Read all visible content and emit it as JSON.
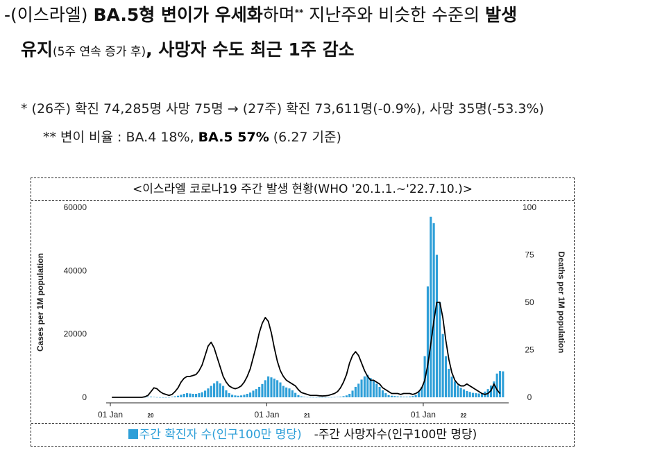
{
  "headline": {
    "dash": "-",
    "p1": "(이스라엘) ",
    "p2": "BA.5",
    "p3": "형 변이가 ",
    "p4": "우세화",
    "p5": "하며",
    "sup": "**",
    "p6": " 지난주와 비슷한 수준의 ",
    "p7": "발생",
    "line2_a": "유지",
    "line2_small": "(5주 연속 증가 후)",
    "line2_b": ", 사망자 수도 최근 1주 감소"
  },
  "note1": "* (26주) 확진 74,285명 사망 75명 → (27주) 확진 73,611명(-0.9%), 사망 35명(-53.3%)",
  "note2": {
    "prefix": "** 변이 비율 : BA.4 18%, ",
    "bold": "BA.5 57%",
    "suffix": " (6.27 기준)"
  },
  "chart_box": {
    "title": "<이스라엘 코로나19 주간 발생 현황(WHO '20.1.1.~'22.7.10.)>",
    "legend_cases": "주간 확진자 수(인구100만 명당)",
    "legend_deaths": "-주간 사망자수(인구100만 명당)"
  },
  "chart_data": {
    "type": "bar",
    "ylabel": "Cases per 1M population",
    "y2label": "Deaths per 1M population",
    "ylim": [
      0,
      60000
    ],
    "y2lim": [
      0,
      100
    ],
    "yticks": [
      0,
      20000,
      40000,
      60000
    ],
    "y2ticks": [
      0,
      25,
      50,
      75,
      100
    ],
    "xticks": [
      {
        "label": "01 Jan",
        "year": "20",
        "week": 0
      },
      {
        "label": "01 Jan",
        "year": "21",
        "week": 52
      },
      {
        "label": "01 Jan",
        "year": "22",
        "week": 104
      }
    ],
    "colors": {
      "cases": "#2e9fd8",
      "deaths": "#000000"
    },
    "series": [
      {
        "name": "주간 확진자 수(인구100만 명당)",
        "kind": "bar",
        "axis": "left",
        "values": [
          0,
          0,
          0,
          0,
          0,
          0,
          0,
          0,
          0,
          0,
          10,
          60,
          150,
          200,
          100,
          50,
          30,
          20,
          30,
          50,
          150,
          300,
          500,
          800,
          1100,
          1300,
          1200,
          1100,
          1100,
          1300,
          1600,
          2100,
          2800,
          3600,
          4400,
          5100,
          4400,
          3600,
          2200,
          1300,
          800,
          600,
          500,
          600,
          800,
          1100,
          1500,
          2100,
          2600,
          3300,
          4200,
          5400,
          6600,
          6300,
          5900,
          5400,
          4700,
          3600,
          3100,
          2800,
          2200,
          1400,
          700,
          300,
          150,
          80,
          60,
          50,
          40,
          40,
          40,
          40,
          50,
          60,
          80,
          120,
          200,
          350,
          600,
          1100,
          2100,
          3300,
          4300,
          5600,
          6600,
          7100,
          6100,
          5300,
          4300,
          3300,
          2200,
          1300,
          700,
          500,
          400,
          300,
          250,
          200,
          200,
          250,
          400,
          700,
          1600,
          3300,
          13000,
          35000,
          57000,
          55000,
          45000,
          30000,
          20000,
          13000,
          9000,
          6500,
          5000,
          3800,
          3000,
          2500,
          2000,
          1700,
          1400,
          1300,
          1200,
          1300,
          1800,
          2600,
          3700,
          5000,
          7500,
          8300,
          8200
        ]
      },
      {
        "name": "주간 사망자수(인구100만 명당)",
        "kind": "line",
        "axis": "right",
        "values": [
          0,
          0,
          0,
          0,
          0,
          0,
          0,
          0,
          0,
          0,
          0,
          0.3,
          1,
          3,
          5,
          4.5,
          3,
          2,
          1.5,
          1,
          1.5,
          3,
          5,
          8,
          10,
          11,
          11,
          11.5,
          12,
          14,
          17,
          22,
          27,
          29,
          26,
          21,
          16,
          11,
          8,
          6,
          5,
          4.5,
          5,
          6,
          8,
          11,
          15,
          21,
          27,
          34,
          39,
          42,
          40,
          34,
          26,
          19,
          14,
          11,
          9,
          8,
          7,
          6,
          4,
          2.5,
          2,
          1.5,
          1,
          1,
          1,
          0.8,
          0.7,
          0.8,
          1,
          1.5,
          2,
          3,
          5,
          8,
          12,
          18,
          22,
          24,
          22,
          18,
          14,
          11,
          9,
          9,
          8,
          7,
          5,
          4,
          3,
          2,
          2,
          2,
          1.5,
          2,
          2,
          2,
          1.5,
          2,
          3,
          5,
          9,
          17,
          28,
          40,
          50,
          50,
          42,
          30,
          20,
          13,
          9,
          7,
          6,
          6,
          7,
          6,
          5,
          4,
          3,
          2,
          1.5,
          2,
          3.5,
          7,
          4,
          2
        ]
      }
    ]
  }
}
